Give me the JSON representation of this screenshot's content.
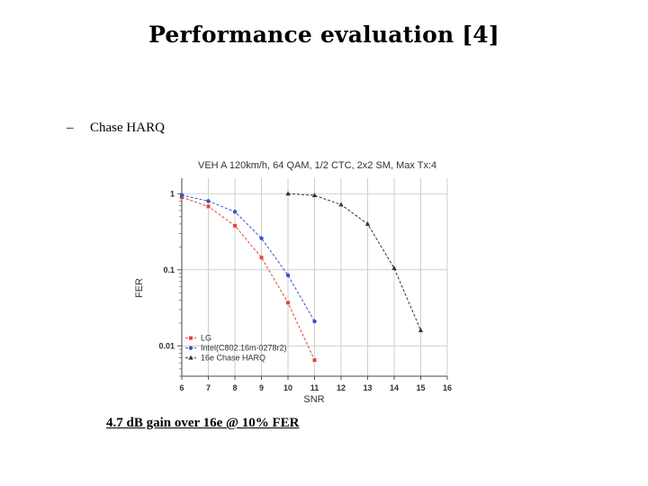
{
  "slide": {
    "title": "Performance evaluation [4]",
    "bullet": "Chase HARQ",
    "bullet_dash": "–",
    "footnote": "4.7 dB gain over 16e @ 10% FER"
  },
  "chart_data": {
    "type": "line",
    "title": "VEH A 120km/h, 64 QAM, 1/2 CTC, 2x2 SM, Max Tx:4",
    "xlabel": "SNR",
    "ylabel": "FER",
    "y_scale": "log",
    "xlim": [
      6,
      16
    ],
    "ylim": [
      0.004,
      1.6
    ],
    "x_ticks": [
      6,
      7,
      8,
      9,
      10,
      11,
      12,
      13,
      14,
      15,
      16
    ],
    "y_ticks": [
      1,
      0.1,
      0.01
    ],
    "y_tick_labels": [
      "1",
      "0.1",
      "0.01"
    ],
    "grid": true,
    "legend_position": "bottom-left",
    "series": [
      {
        "name": "LG",
        "color": "#e8433e",
        "marker": "square",
        "x": [
          6,
          7,
          8,
          9,
          10,
          11
        ],
        "y": [
          0.9,
          0.68,
          0.38,
          0.145,
          0.037,
          0.0065
        ]
      },
      {
        "name": "Intel(C802.16m-0278r2)",
        "color": "#3a4fd0",
        "marker": "circle",
        "x": [
          6,
          7,
          8,
          9,
          10,
          11
        ],
        "y": [
          0.96,
          0.8,
          0.58,
          0.26,
          0.085,
          0.021
        ]
      },
      {
        "name": "16e Chase HARQ",
        "color": "#333333",
        "marker": "triangle",
        "x": [
          10,
          11,
          12,
          13,
          14,
          15
        ],
        "y": [
          1.0,
          0.95,
          0.72,
          0.4,
          0.105,
          0.016
        ]
      }
    ]
  }
}
